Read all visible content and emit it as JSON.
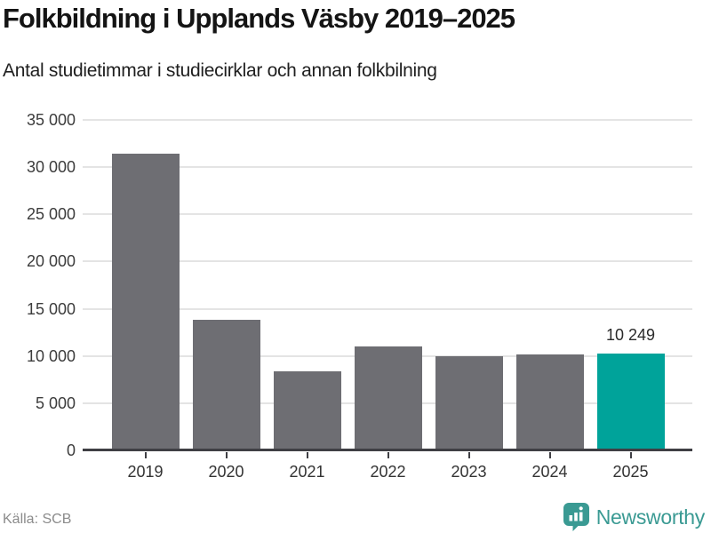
{
  "header": {
    "title": "Folkbildning i Upplands Väsby 2019–2025",
    "subtitle": "Antal studietimmar i studiecirklar och annan folkbilning"
  },
  "chart_data": {
    "type": "bar",
    "categories": [
      "2019",
      "2020",
      "2021",
      "2022",
      "2023",
      "2024",
      "2025"
    ],
    "values": [
      31400,
      13850,
      8350,
      11050,
      9950,
      10150,
      10249
    ],
    "highlight_index": 6,
    "highlight_value_label": "10 249",
    "title": "Folkbildning i Upplands Väsby 2019–2025",
    "xlabel": "",
    "ylabel": "",
    "ylim": [
      0,
      35000
    ],
    "y_ticks": [
      {
        "value": 0,
        "label": "0"
      },
      {
        "value": 5000,
        "label": "5 000"
      },
      {
        "value": 10000,
        "label": "10 000"
      },
      {
        "value": 15000,
        "label": "15 000"
      },
      {
        "value": 20000,
        "label": "20 000"
      },
      {
        "value": 25000,
        "label": "25 000"
      },
      {
        "value": 30000,
        "label": "30 000"
      },
      {
        "value": 35000,
        "label": "35 000"
      }
    ],
    "grid": "horizontal",
    "legend": "none",
    "bar_color": "#6e6e73",
    "highlight_color": "#00a39a"
  },
  "footer": {
    "source": "Källa: SCB",
    "brand": "Newsworthy",
    "brand_color": "#3a9a93",
    "brand_icon": "newsworthy-pin-barchart-icon"
  }
}
